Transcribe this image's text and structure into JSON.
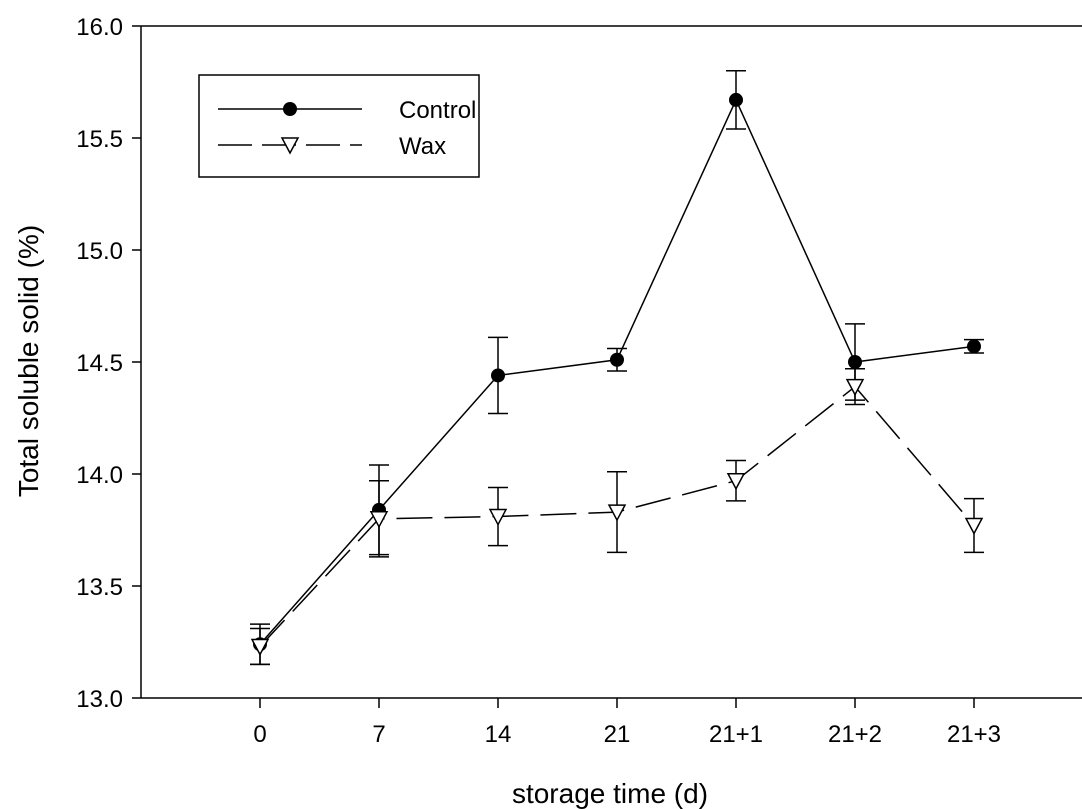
{
  "chart_data": {
    "type": "line",
    "xlabel": "storage time (d)",
    "ylabel": "Total soluble solid (%)",
    "categories": [
      "0",
      "7",
      "14",
      "21",
      "21+1",
      "21+2",
      "21+3"
    ],
    "ylim": [
      13.0,
      16.0
    ],
    "yticks": [
      "13.0",
      "13.5",
      "14.0",
      "14.5",
      "15.0",
      "15.5",
      "16.0"
    ],
    "grid": false,
    "legend_position": "top-left",
    "series": [
      {
        "name": "Control",
        "marker": "filled-circle",
        "line_style": "solid",
        "values": [
          13.24,
          13.84,
          14.44,
          14.51,
          15.67,
          14.5,
          14.57
        ],
        "errors": [
          0.09,
          0.2,
          0.17,
          0.05,
          0.13,
          0.17,
          0.03
        ]
      },
      {
        "name": "Wax",
        "marker": "open-triangle-down",
        "line_style": "dashed",
        "values": [
          13.23,
          13.8,
          13.81,
          13.83,
          13.97,
          14.39,
          13.77
        ],
        "errors": [
          0.08,
          0.17,
          0.13,
          0.18,
          0.09,
          0.08,
          0.12
        ]
      }
    ]
  }
}
